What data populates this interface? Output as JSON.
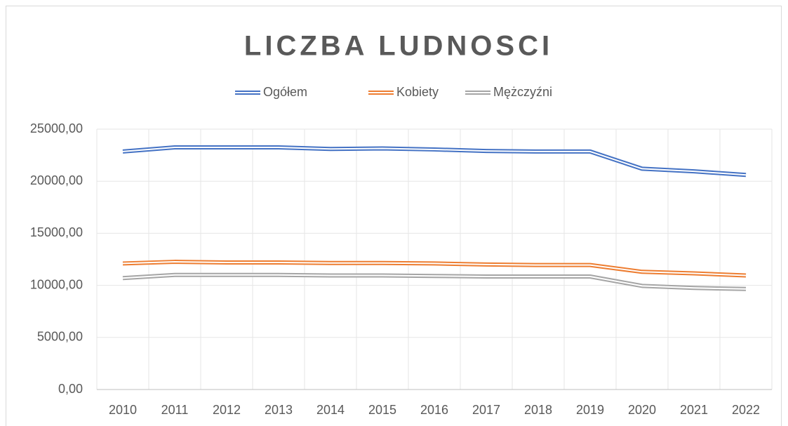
{
  "chart_data": {
    "type": "line",
    "title": "LICZBA LUDNOSCI",
    "categories": [
      "2010",
      "2011",
      "2012",
      "2013",
      "2014",
      "2015",
      "2016",
      "2017",
      "2018",
      "2019",
      "2020",
      "2021",
      "2022"
    ],
    "series": [
      {
        "name": "Ogółem",
        "color": "#4472c4",
        "values": [
          22850,
          23250,
          23250,
          23250,
          23100,
          23150,
          23050,
          22900,
          22850,
          22850,
          21200,
          20950,
          20600
        ]
      },
      {
        "name": "Kobiety",
        "color": "#ed7d31",
        "values": [
          12100,
          12260,
          12200,
          12200,
          12150,
          12150,
          12100,
          12000,
          11950,
          11950,
          11300,
          11150,
          10950
        ]
      },
      {
        "name": "Mężczyźni",
        "color": "#a5a5a5",
        "values": [
          10700,
          11000,
          11000,
          11000,
          10950,
          10950,
          10900,
          10850,
          10850,
          10850,
          9950,
          9750,
          9650
        ]
      }
    ],
    "ylim": [
      0,
      25000
    ],
    "yticks": [
      {
        "value": 0,
        "label": "0,00"
      },
      {
        "value": 5000,
        "label": "5000,00"
      },
      {
        "value": 10000,
        "label": "10000,00"
      },
      {
        "value": 15000,
        "label": "15000,00"
      },
      {
        "value": 20000,
        "label": "20000,00"
      },
      {
        "value": 25000,
        "label": "25000,00"
      }
    ],
    "grid": true,
    "legend": "top"
  }
}
